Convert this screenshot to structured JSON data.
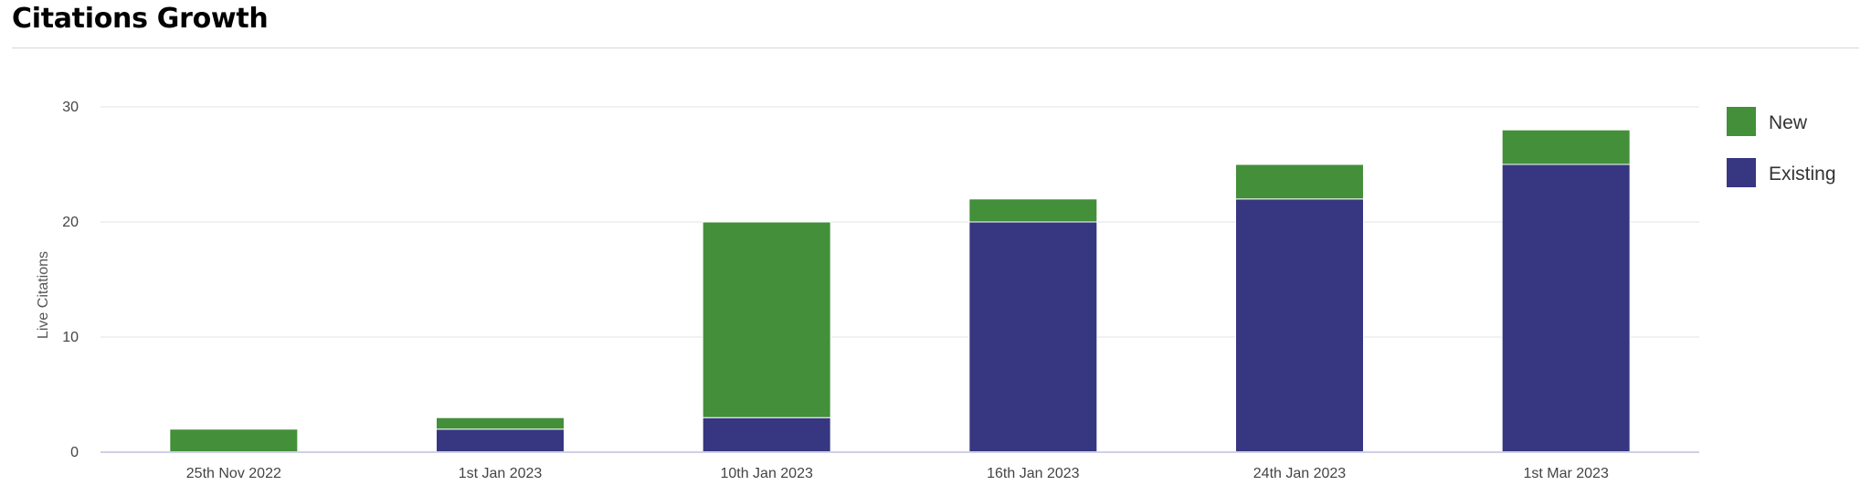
{
  "page": {
    "title": "Citations Growth"
  },
  "chart_data": {
    "type": "bar",
    "stacked": true,
    "categories": [
      "25th Nov 2022",
      "1st Jan 2023",
      "10th Jan 2023",
      "16th Jan 2023",
      "24th Jan 2023",
      "1st Mar 2023"
    ],
    "series": [
      {
        "name": "Existing",
        "color": "#363780",
        "values": [
          0,
          2,
          3,
          20,
          22,
          25
        ]
      },
      {
        "name": "New",
        "color": "#438f3a",
        "values": [
          2,
          1,
          17,
          2,
          3,
          3
        ]
      }
    ],
    "title": "",
    "xlabel": "",
    "ylabel": "Live Citations",
    "ylim": [
      0,
      30
    ],
    "yticks": [
      0,
      10,
      20,
      30
    ],
    "grid": true,
    "legend": {
      "position": "right",
      "order": [
        "New",
        "Existing"
      ]
    }
  }
}
